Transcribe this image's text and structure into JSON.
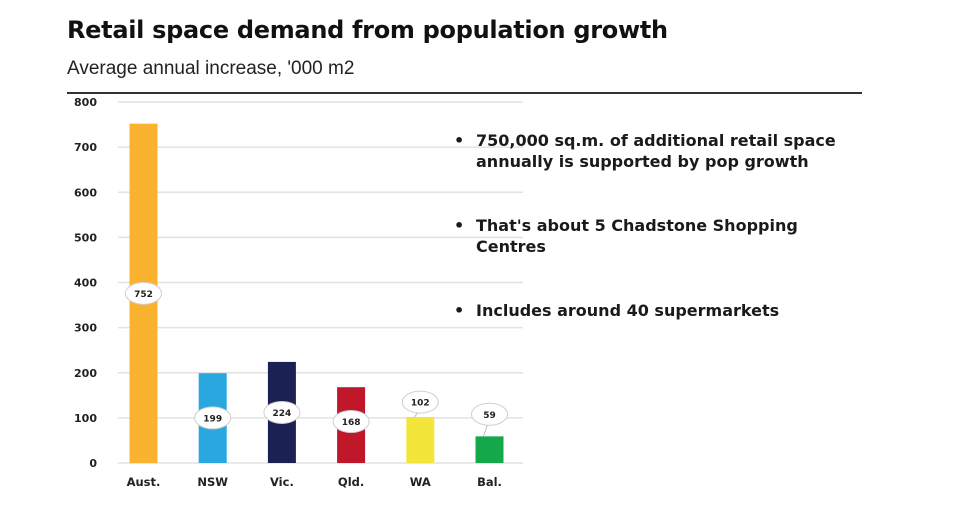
{
  "header": {
    "title": "Retail space demand from population growth",
    "subtitle": "Average annual increase, '000 m2"
  },
  "bullets": [
    {
      "icon": "bullet-dot",
      "symbol": "•",
      "text": "750,000 sq.m. of additional retail space annually is supported by pop growth"
    },
    {
      "icon": "bullet-dot",
      "symbol": "•",
      "text": "That's about 5 Chadstone Shopping Centres"
    },
    {
      "icon": "bullet-dot",
      "symbol": "•",
      "text": "Includes around 40 supermarkets"
    }
  ],
  "chart_data": {
    "type": "bar",
    "title": "Retail space demand from population growth",
    "subtitle": "Average annual increase, '000 m2",
    "xlabel": "",
    "ylabel": "",
    "categories": [
      "Aust.",
      "NSW",
      "Vic.",
      "Qld.",
      "WA",
      "Bal."
    ],
    "values": [
      752,
      199,
      224,
      168,
      102,
      59
    ],
    "data_labels": [
      "752",
      "199",
      "224",
      "168",
      "102",
      "59"
    ],
    "colors": [
      "#FBB22F",
      "#29A8E0",
      "#1B2152",
      "#C0182A",
      "#F4E53A",
      "#14A84B"
    ],
    "ylim": [
      0,
      800
    ],
    "yticks": [
      0,
      100,
      200,
      300,
      400,
      500,
      600,
      700,
      800
    ],
    "grid": true,
    "legend": "none"
  }
}
